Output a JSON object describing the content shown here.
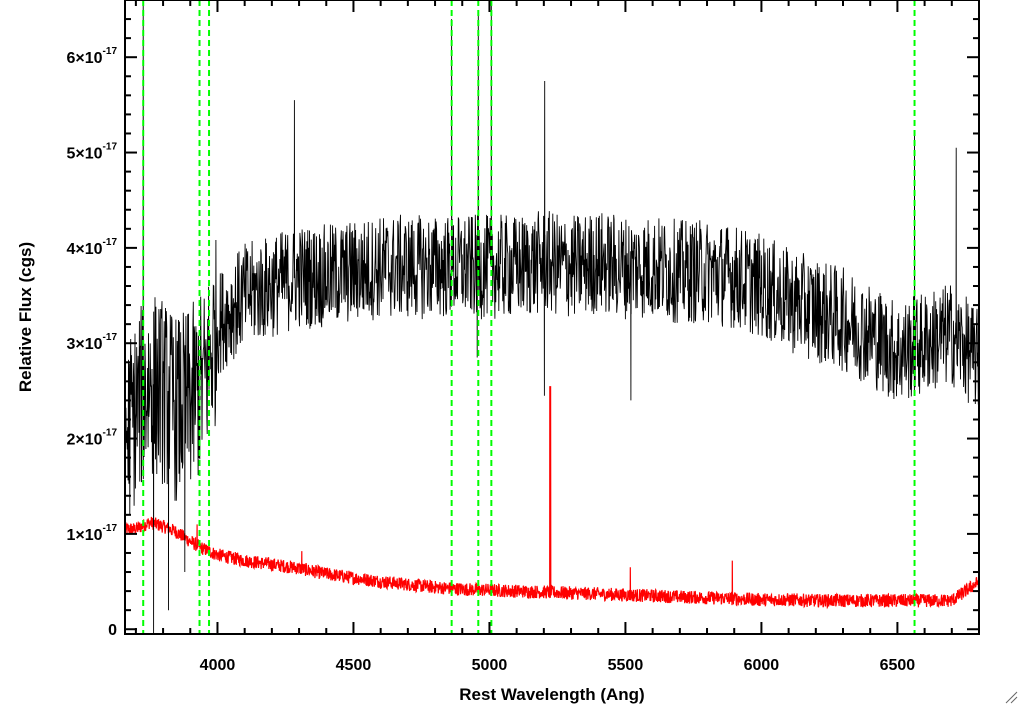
{
  "chart_data": {
    "type": "line",
    "xlabel": "Rest Wavelength (Ang)",
    "ylabel": "Relative Flux (cgs)",
    "xlim": [
      3660,
      6800
    ],
    "ylim": [
      -5e-19,
      6.6e-17
    ],
    "x_ticks": [
      {
        "value": 4000,
        "label": "4000"
      },
      {
        "value": 4500,
        "label": "4500"
      },
      {
        "value": 5000,
        "label": "5000"
      },
      {
        "value": 5500,
        "label": "5500"
      },
      {
        "value": 6000,
        "label": "6000"
      },
      {
        "value": 6500,
        "label": "6500"
      }
    ],
    "y_ticks": [
      {
        "value": 0,
        "label": "0",
        "exp": ""
      },
      {
        "value": 1e-17,
        "label": "1×10",
        "exp": "-17"
      },
      {
        "value": 2e-17,
        "label": "2×10",
        "exp": "-17"
      },
      {
        "value": 3e-17,
        "label": "3×10",
        "exp": "-17"
      },
      {
        "value": 4e-17,
        "label": "4×10",
        "exp": "-17"
      },
      {
        "value": 5e-17,
        "label": "5×10",
        "exp": "-17"
      },
      {
        "value": 6e-17,
        "label": "6×10",
        "exp": "-17"
      }
    ],
    "grid": false,
    "series": [
      {
        "role": "flux",
        "color": "#000000",
        "x": [
          3660,
          3700,
          3750,
          3800,
          3850,
          3900,
          3950,
          4000,
          4100,
          4200,
          4300,
          4400,
          4500,
          4600,
          4700,
          4800,
          4900,
          5000,
          5100,
          5200,
          5300,
          5400,
          5500,
          5600,
          5700,
          5800,
          5900,
          6000,
          6100,
          6200,
          6300,
          6400,
          6500,
          6600,
          6700,
          6800
        ],
        "y": [
          2e-17,
          2.3e-17,
          2.6e-17,
          2.5e-17,
          2.3e-17,
          2.4e-17,
          2.6e-17,
          3.2e-17,
          3.5e-17,
          3.6e-17,
          3.7e-17,
          3.7e-17,
          3.75e-17,
          3.8e-17,
          3.8e-17,
          3.8e-17,
          3.8e-17,
          3.8e-17,
          3.8e-17,
          3.85e-17,
          3.8e-17,
          3.85e-17,
          3.8e-17,
          3.8e-17,
          3.75e-17,
          3.75e-17,
          3.7e-17,
          3.6e-17,
          3.45e-17,
          3.35e-17,
          3.25e-17,
          3.1e-17,
          2.9e-17,
          3e-17,
          3.1e-17,
          2.8e-17
        ],
        "spikes": [
          {
            "x": 3727,
            "y": 6.6e-17
          },
          {
            "x": 4283,
            "y": 5.55e-17
          },
          {
            "x": 4861,
            "y": 6.4e-17
          },
          {
            "x": 4959,
            "y": 6.45e-17
          },
          {
            "x": 5007,
            "y": 6.6e-17
          },
          {
            "x": 5203,
            "y": 5.75e-17
          },
          {
            "x": 6563,
            "y": 5.2e-17
          },
          {
            "x": 6716,
            "y": 5.05e-17
          },
          {
            "x": 3765,
            "y": -5e-19
          },
          {
            "x": 3820,
            "y": 2e-18
          },
          {
            "x": 3880,
            "y": 6e-18
          },
          {
            "x": 4955,
            "y": 2.85e-17
          },
          {
            "x": 5202,
            "y": 2.45e-17
          },
          {
            "x": 5520,
            "y": 2.4e-17
          }
        ],
        "noise": 5.5e-18
      },
      {
        "role": "error",
        "color": "#ff0000",
        "x": [
          3660,
          3700,
          3750,
          3800,
          3850,
          3900,
          3950,
          4000,
          4100,
          4200,
          4300,
          4400,
          4500,
          4600,
          4700,
          4800,
          4900,
          5000,
          5100,
          5200,
          5300,
          5400,
          5500,
          5600,
          5700,
          5800,
          5900,
          6000,
          6100,
          6200,
          6300,
          6400,
          6500,
          6600,
          6700,
          6800
        ],
        "y": [
          1.05e-17,
          1.05e-17,
          1.12e-17,
          1.08e-17,
          1.02e-17,
          9.2e-18,
          8.4e-18,
          7.8e-18,
          7.2e-18,
          6.8e-18,
          6.4e-18,
          5.8e-18,
          5.4e-18,
          5e-18,
          4.7e-18,
          4.4e-18,
          4.2e-18,
          4.1e-18,
          4e-18,
          3.9e-18,
          3.8e-18,
          3.7e-18,
          3.6e-18,
          3.5e-18,
          3.4e-18,
          3.3e-18,
          3.2e-18,
          3.1e-18,
          3.1e-18,
          3e-18,
          3e-18,
          3e-18,
          3e-18,
          3e-18,
          3e-18,
          5e-18
        ],
        "spikes": [
          {
            "x": 5222,
            "y": 2.55e-17
          },
          {
            "x": 5225,
            "y": 2.55e-17
          },
          {
            "x": 5518,
            "y": 6.5e-18
          },
          {
            "x": 5893,
            "y": 7.2e-18
          },
          {
            "x": 4310,
            "y": 8.2e-18
          },
          {
            "x": 3925,
            "y": 1.1e-17
          }
        ],
        "noise": 7e-19
      }
    ],
    "vertical_lines": {
      "color": "#00ff00",
      "style": "dashed",
      "x": [
        3727,
        3934,
        3969,
        4861,
        4959,
        5007,
        6563
      ]
    }
  }
}
